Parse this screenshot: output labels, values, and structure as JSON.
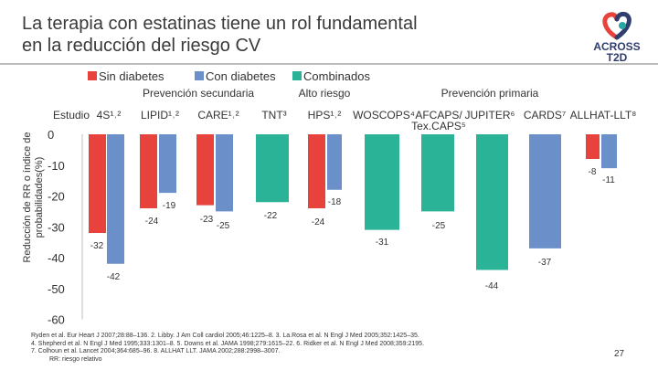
{
  "title_lines": [
    "La terapia con estatinas tiene un rol fundamental",
    "en la reducción del riesgo CV"
  ],
  "logo": {
    "text1": "ACROSS",
    "text2": "T2D",
    "colors": [
      "#e8423d",
      "#2f3e6e",
      "#2aa7a0"
    ]
  },
  "chart_data": {
    "type": "bar",
    "ylabel": "Reducción de RR o índice de probabilidades(%)",
    "ylim": [
      -60,
      0
    ],
    "yticks": [
      "0",
      "-10",
      "-20",
      "-30",
      "-40",
      "-50",
      "-60"
    ],
    "row_label": "Estudio",
    "legend": [
      {
        "name": "Sin diabetes",
        "color": "#e8423d"
      },
      {
        "name": "Con diabetes",
        "color": "#6a8fc9"
      },
      {
        "name": "Combinados",
        "color": "#2ab397"
      }
    ],
    "groups": [
      {
        "label": "Prevención secundaria"
      },
      {
        "label": "Alto riesgo"
      },
      {
        "label": "Prevención primaria"
      }
    ],
    "categories": [
      {
        "label": "4S¹˒²",
        "group": 0,
        "values": [
          -32,
          -42,
          null
        ]
      },
      {
        "label": "LIPID¹˒²",
        "group": 0,
        "values": [
          -24,
          -19,
          null
        ]
      },
      {
        "label": "CARE¹˒²",
        "group": 0,
        "values": [
          -23,
          -25,
          null
        ]
      },
      {
        "label": "TNT³",
        "group": 0,
        "values": [
          null,
          null,
          -22
        ]
      },
      {
        "label": "HPS¹˒²",
        "group": 1,
        "values": [
          -24,
          -18,
          null
        ]
      },
      {
        "label": "WOSCOPS⁴",
        "group": 2,
        "values": [
          null,
          null,
          -31
        ]
      },
      {
        "label": "AFCAPS/ Tex.CAPS⁵",
        "group": 2,
        "values": [
          null,
          null,
          -25
        ]
      },
      {
        "label": "JUPITER⁶",
        "group": 2,
        "values": [
          null,
          null,
          -44
        ]
      },
      {
        "label": "CARDS⁷",
        "group": 2,
        "values": [
          null,
          -37,
          null
        ]
      },
      {
        "label": "ALLHAT-LLT⁸",
        "group": 2,
        "values": [
          -8,
          -11,
          null
        ]
      }
    ]
  },
  "references": [
    "Ryden et al. Eur Heart J 2007;28:88–136. 2. Libby. J Am Coll cardiol 2005;46:1225–8. 3. La.Rosa et al. N Engl J Med 2005;352:1425–35.",
    "4. Shepherd et al. N Engl J Med 1995;333:1301–8. 5. Downs et al. JAMA 1998;279:1615–22. 6. Ridker et al. N Engl J Med 2008;359:2195.",
    "7. Colhoun et al. Lancet 2004;364:685–96. 8. ALLHAT LLT. JAMA 2002;288:2998–3007.",
    "RR: riesgo relativo"
  ],
  "page_number": "27"
}
